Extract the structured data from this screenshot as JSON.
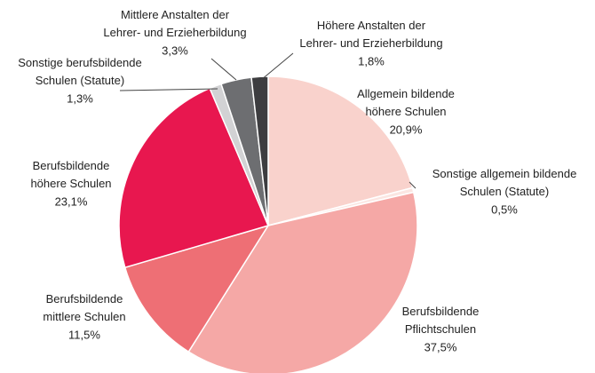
{
  "chart_data": {
    "type": "pie",
    "categories": [
      "Allgemein bildende\nhöhere Schulen",
      "Sonstige allgemein bildende\nSchulen (Statute)",
      "Berufsbildende\nPflichtschulen",
      "Berufsbildende\nmittlere Schulen",
      "Berufsbildende\nhöhere Schulen",
      "Sonstige berufsbildende\nSchulen (Statute)",
      "Mittlere Anstalten der\nLehrer- und Erzieherbildung",
      "Höhere Anstalten der\nLehrer- und Erzieherbildung"
    ],
    "values": [
      20.9,
      0.5,
      37.5,
      11.5,
      23.1,
      1.3,
      3.3,
      1.8
    ],
    "value_labels": [
      "20,9%",
      "0,5%",
      "37,5%",
      "11,5%",
      "23,1%",
      "1,3%",
      "3,3%",
      "1,8%"
    ],
    "colors": [
      "#f9d2cc",
      "#fbe6e2",
      "#f5a8a6",
      "#ee6f75",
      "#e8174f",
      "#d2d2d4",
      "#6d6e71",
      "#3d3d40"
    ]
  }
}
